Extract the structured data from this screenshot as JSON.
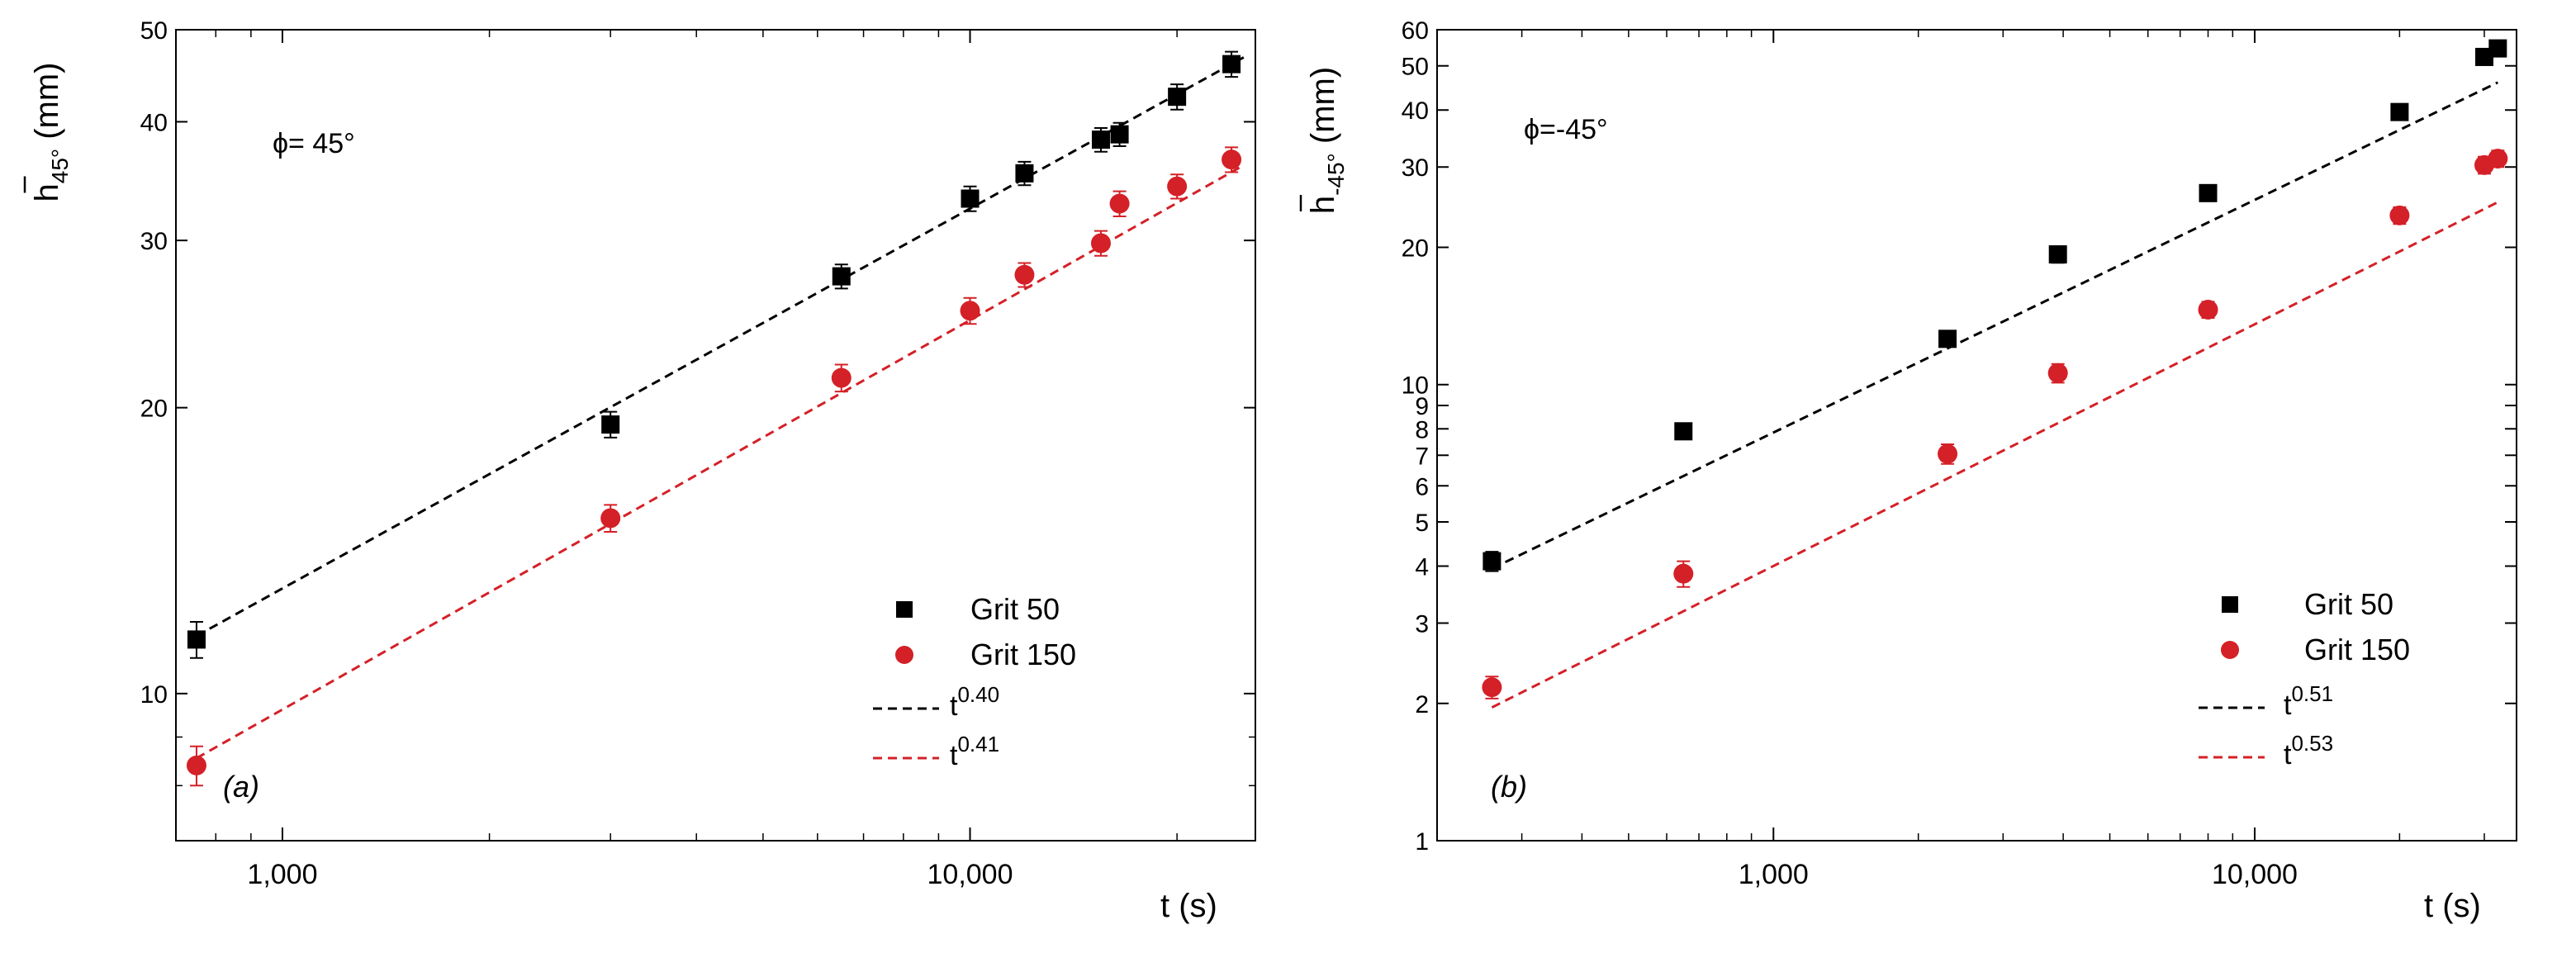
{
  "chart_data": [
    {
      "type": "scatter",
      "panel_label": "(a)",
      "annotation": "ϕ= 45°",
      "title": "",
      "xlabel": "t (s)",
      "ylabel": {
        "base": "h",
        "sub": "45°",
        "unit": "(mm)"
      },
      "xscale": "log",
      "yscale": "log",
      "xlim": [
        700,
        26000
      ],
      "ylim": [
        7,
        50
      ],
      "xticks": [
        {
          "value": 1000,
          "label": "1,000"
        },
        {
          "value": 10000,
          "label": "10,000"
        }
      ],
      "yticks": [
        {
          "value": 10,
          "label": "10"
        },
        {
          "value": 20,
          "label": "20"
        },
        {
          "value": 30,
          "label": "30"
        },
        {
          "value": 40,
          "label": "40"
        },
        {
          "value": 50,
          "label": "50"
        }
      ],
      "legend_position": "bottom-right",
      "series": [
        {
          "name": "Grit 50",
          "marker": "square",
          "color": "#000000",
          "x": [
            750,
            3000,
            6500,
            10000,
            12000,
            15500,
            16500,
            20000,
            24000
          ],
          "y": [
            11.4,
            19.2,
            27.5,
            33.2,
            35.3,
            38.3,
            38.8,
            42.5,
            46.0
          ],
          "err": [
            0.5,
            0.6,
            0.8,
            1.0,
            1.0,
            1.1,
            1.1,
            1.3,
            1.4
          ]
        },
        {
          "name": "Grit 150",
          "marker": "circle",
          "color": "#d42027",
          "x": [
            750,
            3000,
            6500,
            10000,
            12000,
            15500,
            16500,
            20000,
            24000
          ],
          "y": [
            8.4,
            15.3,
            21.5,
            25.3,
            27.6,
            29.8,
            32.8,
            34.2,
            36.5
          ],
          "err": [
            0.4,
            0.5,
            0.7,
            0.8,
            0.8,
            0.9,
            1.0,
            1.0,
            1.1
          ]
        }
      ],
      "fits": [
        {
          "label_base": "t",
          "label_exp": "0.40",
          "exponent": 0.4,
          "color": "#000000",
          "x_range": [
            750,
            25000
          ],
          "y_at_start": 11.5
        },
        {
          "label_base": "t",
          "label_exp": "0.41",
          "exponent": 0.41,
          "color": "#d42027",
          "x_range": [
            750,
            25000
          ],
          "y_at_start": 8.55
        }
      ]
    },
    {
      "type": "scatter",
      "panel_label": "(b)",
      "annotation": "ϕ=-45°",
      "title": "",
      "xlabel": "t (s)",
      "ylabel": {
        "base": "h",
        "sub": "-45°",
        "unit": "(mm)"
      },
      "xscale": "log",
      "yscale": "log",
      "xlim": [
        200,
        35000
      ],
      "ylim": [
        1,
        60
      ],
      "xticks": [
        {
          "value": 1000,
          "label": "1,000"
        },
        {
          "value": 10000,
          "label": "10,000"
        }
      ],
      "yticks": [
        {
          "value": 1,
          "label": "1"
        },
        {
          "value": 2,
          "label": "2"
        },
        {
          "value": 3,
          "label": "3"
        },
        {
          "value": 4,
          "label": "4"
        },
        {
          "value": 5,
          "label": "5"
        },
        {
          "value": 6,
          "label": "6"
        },
        {
          "value": 7,
          "label": "7"
        },
        {
          "value": 8,
          "label": "8"
        },
        {
          "value": 9,
          "label": "9"
        },
        {
          "value": 10,
          "label": "10"
        },
        {
          "value": 20,
          "label": "20"
        },
        {
          "value": 30,
          "label": "30"
        },
        {
          "value": 40,
          "label": "40"
        },
        {
          "value": 50,
          "label": "50"
        },
        {
          "value": 60,
          "label": "60"
        }
      ],
      "legend_position": "bottom-right",
      "series": [
        {
          "name": "Grit 50",
          "marker": "square",
          "color": "#000000",
          "x": [
            260,
            650,
            2300,
            3900,
            8000,
            20000,
            30000,
            32000
          ],
          "y": [
            4.1,
            7.9,
            12.6,
            19.3,
            26.3,
            39.6,
            52.3,
            54.6
          ],
          "err": [
            0.2,
            0.3,
            0.5,
            0.8,
            1.0,
            1.5,
            2.0,
            2.0
          ]
        },
        {
          "name": "Grit 150",
          "marker": "circle",
          "color": "#d42027",
          "x": [
            260,
            650,
            2300,
            3900,
            8000,
            20000,
            30000,
            32000
          ],
          "y": [
            2.17,
            3.85,
            7.05,
            10.6,
            14.6,
            23.5,
            30.3,
            31.3
          ],
          "err": [
            0.12,
            0.25,
            0.35,
            0.5,
            0.6,
            1.0,
            1.3,
            1.3
          ]
        }
      ],
      "fits": [
        {
          "label_base": "t",
          "label_exp": "0.51",
          "exponent": 0.51,
          "color": "#000000",
          "x_range": [
            260,
            32000
          ],
          "y_at_start": 3.95
        },
        {
          "label_base": "t",
          "label_exp": "0.53",
          "exponent": 0.53,
          "color": "#d42027",
          "x_range": [
            260,
            32000
          ],
          "y_at_start": 1.96
        }
      ]
    }
  ]
}
